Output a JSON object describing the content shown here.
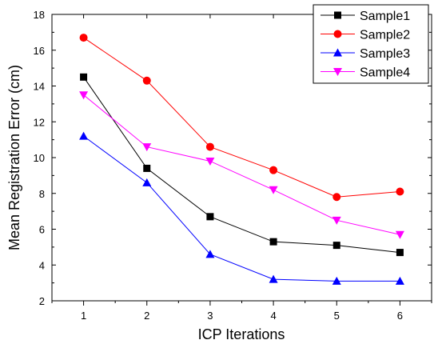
{
  "chart_data": {
    "type": "line",
    "title": "",
    "xlabel": "ICP Iterations",
    "ylabel": "Mean Registration Error (cm)",
    "x": [
      1,
      2,
      3,
      4,
      5,
      6
    ],
    "xlim": [
      0.5,
      6.5
    ],
    "ylim": [
      2,
      18
    ],
    "yticks": [
      2,
      4,
      6,
      8,
      10,
      12,
      14,
      16,
      18
    ],
    "xticks": [
      1,
      2,
      3,
      4,
      5,
      6
    ],
    "grid": false,
    "legend_position": "top-right",
    "series": [
      {
        "name": "Sample1",
        "color": "#000000",
        "marker": "square",
        "values": [
          14.5,
          9.4,
          6.7,
          5.3,
          5.1,
          4.7
        ]
      },
      {
        "name": "Sample2",
        "color": "#ff0000",
        "marker": "circle",
        "values": [
          16.7,
          14.3,
          10.6,
          9.3,
          7.8,
          8.1
        ]
      },
      {
        "name": "Sample3",
        "color": "#0000ff",
        "marker": "triangle-up",
        "values": [
          11.2,
          8.6,
          4.6,
          3.2,
          3.1,
          3.1
        ]
      },
      {
        "name": "Sample4",
        "color": "#ff00ff",
        "marker": "triangle-down",
        "values": [
          13.5,
          10.6,
          9.8,
          8.2,
          6.5,
          5.7
        ]
      }
    ]
  }
}
